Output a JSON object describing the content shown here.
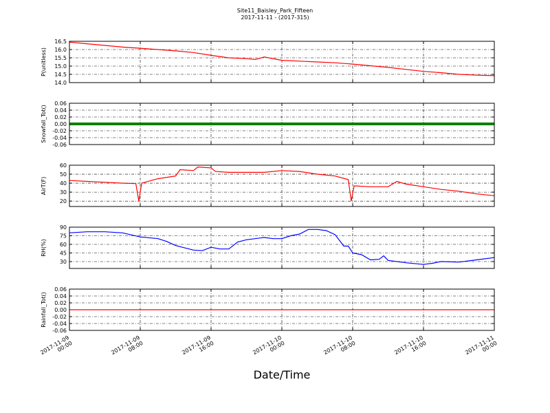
{
  "chart_data": [
    {
      "type": "line",
      "title": "Site11_Baisley_Park_Fifteen",
      "subtitle": "2017-11-11 - (2017-315)",
      "ylabel": "P(unitless)",
      "color": "#ff0000",
      "grid": true,
      "ylim": [
        14.0,
        16.5
      ],
      "yticks": [
        {
          "value": 14.0,
          "label": "14.0"
        },
        14.5,
        {
          "value": 15.0,
          "label": "15.0"
        },
        15.5,
        {
          "value": 16.0,
          "label": "16.0"
        },
        16.5
      ],
      "x": [
        "2017-11-09 00:00",
        "2017-11-09 02:00",
        "2017-11-09 04:00",
        "2017-11-09 06:00",
        "2017-11-09 08:00",
        "2017-11-09 10:00",
        "2017-11-09 12:00",
        "2017-11-09 14:00",
        "2017-11-09 16:00",
        "2017-11-09 18:00",
        "2017-11-09 20:00",
        "2017-11-09 21:00",
        "2017-11-09 22:00",
        "2017-11-10 00:00",
        "2017-11-10 02:00",
        "2017-11-10 04:00",
        "2017-11-10 06:00",
        "2017-11-10 08:00",
        "2017-11-10 10:00",
        "2017-11-10 12:00",
        "2017-11-10 14:00",
        "2017-11-10 16:00",
        "2017-11-10 18:00",
        "2017-11-10 20:00",
        "2017-11-10 22:00",
        "2017-11-11 00:00"
      ],
      "values": [
        16.45,
        16.35,
        16.25,
        16.15,
        16.08,
        16.0,
        15.92,
        15.82,
        15.65,
        15.5,
        15.45,
        15.4,
        15.55,
        15.35,
        15.3,
        15.25,
        15.2,
        15.12,
        15.02,
        14.92,
        14.8,
        14.68,
        14.6,
        14.5,
        14.45,
        14.42
      ]
    },
    {
      "type": "line",
      "ylabel": "Snowfall_Tot()",
      "color": "#008000",
      "grid": true,
      "ylim": [
        -0.06,
        0.06
      ],
      "yticks": [
        -0.06,
        -0.04,
        -0.02,
        {
          "value": 0,
          "label": "0.00"
        },
        0.02,
        0.04,
        0.06
      ],
      "x": [
        "2017-11-09 00:00",
        "2017-11-09 06:00",
        "2017-11-09 12:00",
        "2017-11-09 18:00",
        "2017-11-10 00:00",
        "2017-11-10 06:00",
        "2017-11-10 12:00",
        "2017-11-10 18:00",
        "2017-11-11 00:00"
      ],
      "values": [
        0,
        0,
        0,
        0,
        0,
        0,
        0,
        0,
        0
      ]
    },
    {
      "type": "line",
      "ylabel": "AirT(F)",
      "color": "#ff0000",
      "grid": true,
      "ylim": [
        14,
        60
      ],
      "yticks": [
        20,
        30,
        40,
        50,
        60
      ],
      "x": [
        "2017-11-09 00:00",
        "2017-11-09 02:00",
        "2017-11-09 04:00",
        "2017-11-09 06:00",
        "2017-11-09 07:30",
        "2017-11-09 07:50",
        "2017-11-09 08:10",
        "2017-11-09 10:00",
        "2017-11-09 12:00",
        "2017-11-09 12:30",
        "2017-11-09 14:00",
        "2017-11-09 14:30",
        "2017-11-09 16:00",
        "2017-11-09 16:30",
        "2017-11-09 18:00",
        "2017-11-09 20:00",
        "2017-11-09 22:00",
        "2017-11-10 00:00",
        "2017-11-10 02:00",
        "2017-11-10 04:00",
        "2017-11-10 06:00",
        "2017-11-10 07:30",
        "2017-11-10 07:50",
        "2017-11-10 08:10",
        "2017-11-10 10:00",
        "2017-11-10 12:00",
        "2017-11-10 13:00",
        "2017-11-10 14:00",
        "2017-11-10 16:00",
        "2017-11-10 18:00",
        "2017-11-10 20:00",
        "2017-11-10 22:00",
        "2017-11-11 00:00"
      ],
      "values": [
        43,
        42,
        41,
        40,
        39.5,
        20,
        40,
        45,
        48,
        55,
        54,
        58,
        57,
        53,
        52,
        52,
        52,
        54,
        53,
        50,
        48,
        44,
        20,
        37,
        36,
        36,
        42,
        39,
        36,
        33,
        31,
        28,
        26
      ]
    },
    {
      "type": "line",
      "ylabel": "RH(%)",
      "color": "#0000ff",
      "grid": true,
      "ylim": [
        18,
        90
      ],
      "yticks": [
        30,
        45,
        60,
        75,
        90
      ],
      "x": [
        "2017-11-09 00:00",
        "2017-11-09 02:00",
        "2017-11-09 04:00",
        "2017-11-09 06:00",
        "2017-11-09 08:00",
        "2017-11-09 10:00",
        "2017-11-09 11:00",
        "2017-11-09 12:00",
        "2017-11-09 14:00",
        "2017-11-09 15:00",
        "2017-11-09 16:00",
        "2017-11-09 17:00",
        "2017-11-09 18:00",
        "2017-11-09 19:00",
        "2017-11-09 20:00",
        "2017-11-09 22:00",
        "2017-11-09 23:00",
        "2017-11-10 00:00",
        "2017-11-10 01:00",
        "2017-11-10 02:00",
        "2017-11-10 03:00",
        "2017-11-10 04:00",
        "2017-11-10 05:00",
        "2017-11-10 06:00",
        "2017-11-10 07:00",
        "2017-11-10 07:30",
        "2017-11-10 08:00",
        "2017-11-10 09:00",
        "2017-11-10 10:00",
        "2017-11-10 11:00",
        "2017-11-10 11:30",
        "2017-11-10 12:00",
        "2017-11-10 14:00",
        "2017-11-10 16:00",
        "2017-11-10 17:00",
        "2017-11-10 18:00",
        "2017-11-10 20:00",
        "2017-11-10 22:00",
        "2017-11-11 00:00"
      ],
      "values": [
        80,
        82,
        82,
        80,
        73,
        70,
        65,
        58,
        50,
        49,
        55,
        52,
        52,
        64,
        68,
        72,
        70,
        70,
        75,
        78,
        86,
        86,
        84,
        77,
        57,
        57,
        45,
        42,
        33,
        34,
        40,
        32,
        28,
        25,
        27,
        30,
        29,
        33,
        37
      ]
    },
    {
      "type": "line",
      "ylabel": "Rainfall_Tot()",
      "xlabel": "Date/Time",
      "color": "#ff0000",
      "grid": true,
      "ylim": [
        -0.06,
        0.06
      ],
      "yticks": [
        -0.06,
        -0.04,
        -0.02,
        {
          "value": 0,
          "label": "0.00"
        },
        0.02,
        0.04,
        0.06
      ],
      "xlim": [
        "2017-11-09 00:00",
        "2017-11-11 00:00"
      ],
      "xticks": [
        "2017-11-09 00:00",
        "2017-11-09 08:00",
        "2017-11-09 16:00",
        "2017-11-10 00:00",
        "2017-11-10 08:00",
        "2017-11-10 16:00",
        "2017-11-11 00:00"
      ],
      "x": [
        "2017-11-09 00:00",
        "2017-11-09 12:00",
        "2017-11-10 00:00",
        "2017-11-10 12:00",
        "2017-11-11 00:00"
      ],
      "values": [
        0,
        0,
        0,
        0,
        0
      ]
    }
  ]
}
